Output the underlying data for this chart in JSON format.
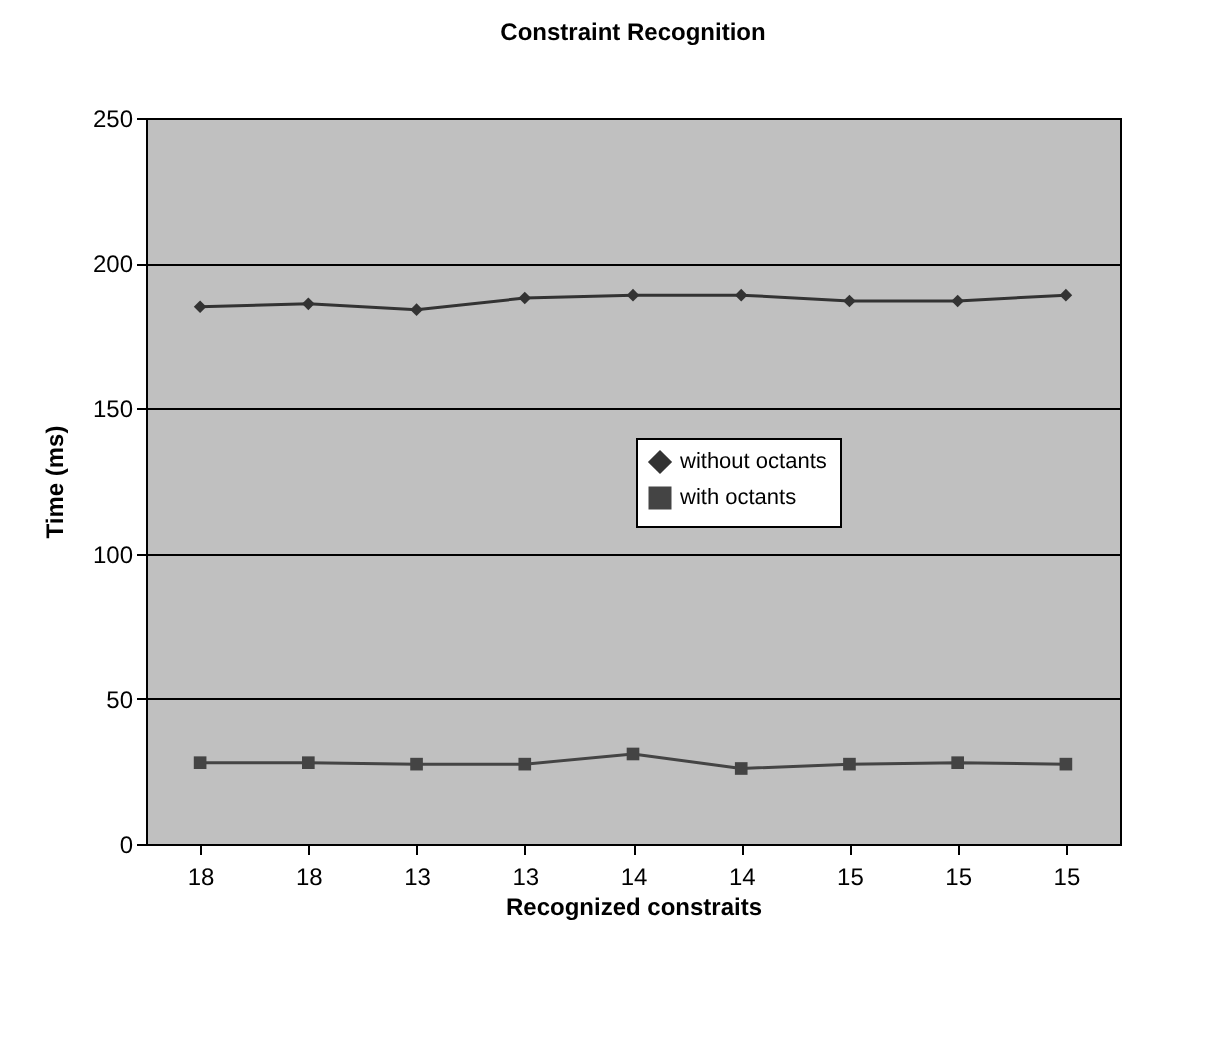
{
  "chart_data": {
    "type": "line",
    "title": "Constraint Recognition",
    "xlabel": "Recognized constraits",
    "ylabel": "Time (ms)",
    "categories": [
      "18",
      "18",
      "13",
      "13",
      "14",
      "14",
      "15",
      "15",
      "15"
    ],
    "series": [
      {
        "name": "without octants",
        "color": "#333333",
        "marker": "diamond",
        "values": [
          185,
          186,
          184,
          188,
          189,
          189,
          187,
          187,
          189
        ]
      },
      {
        "name": "with octants",
        "color": "#444444",
        "marker": "square",
        "values": [
          28,
          28,
          27.5,
          27.5,
          31,
          26,
          27.5,
          28,
          27.5
        ]
      }
    ],
    "ylim": [
      0,
      250
    ],
    "yticks": [
      0,
      50,
      100,
      150,
      200,
      250
    ],
    "grid": "y",
    "legend": "center"
  }
}
